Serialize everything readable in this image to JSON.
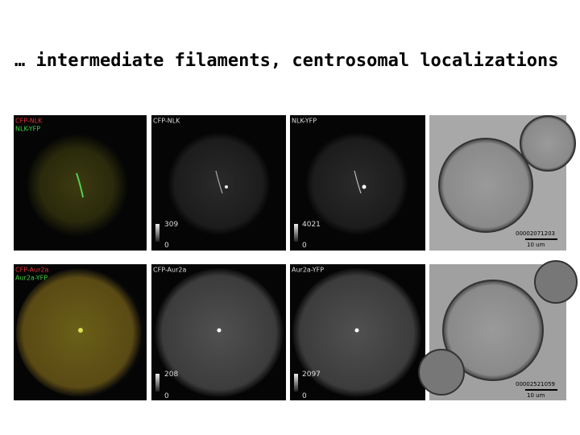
{
  "title": "… intermediate filaments, centrosomal localizations",
  "rows": [
    {
      "panels": [
        {
          "labels": [
            "CFP-NLK",
            "NLK-YFP"
          ]
        },
        {
          "labels": [
            "CFP-NLK"
          ],
          "scale_max": "309",
          "scale_min": "0"
        },
        {
          "labels": [
            "NLK-YFP"
          ],
          "scale_max": "4021",
          "scale_min": "0"
        },
        {
          "timestamp": "00002071203",
          "scale_bar": "10 um"
        }
      ]
    },
    {
      "panels": [
        {
          "labels": [
            "CFP-Aur2a",
            "Aur2a-YFP"
          ]
        },
        {
          "labels": [
            "CFP-Aur2a"
          ],
          "scale_max": "208",
          "scale_min": "0"
        },
        {
          "labels": [
            "Aur2a-YFP"
          ],
          "scale_max": "2097",
          "scale_min": "0"
        },
        {
          "timestamp": "00002521059",
          "scale_bar": "10 um"
        }
      ]
    }
  ]
}
